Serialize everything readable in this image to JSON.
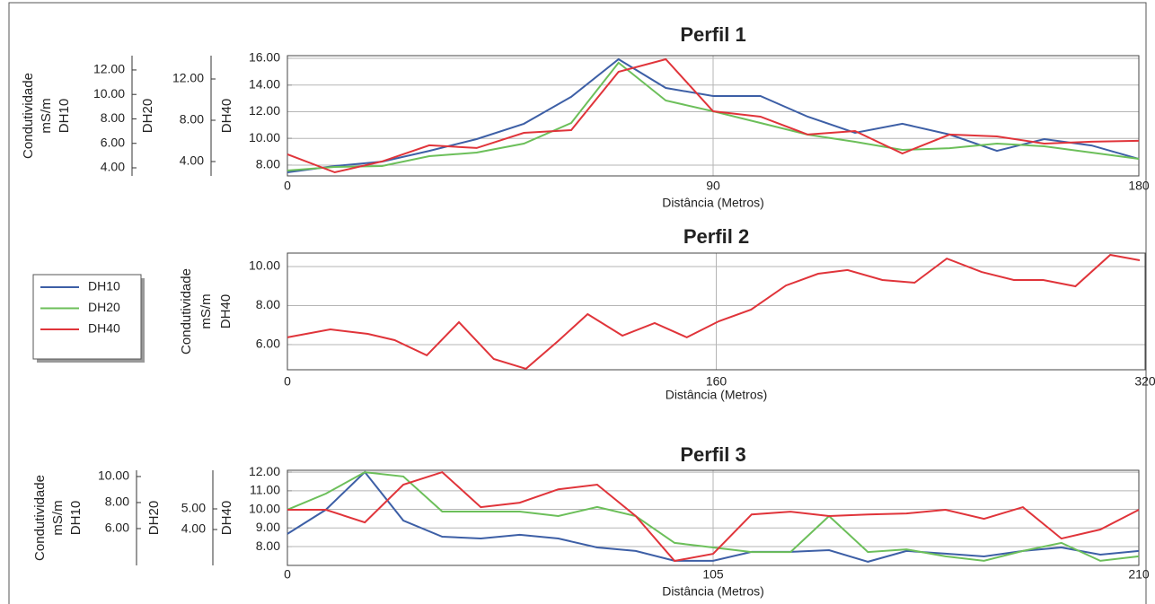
{
  "chart_data": [
    {
      "type": "line",
      "title": "Perfil 1",
      "xlabel": "Distância (Metros)",
      "xlim": [
        0,
        180
      ],
      "xticks": [
        0,
        90,
        180
      ],
      "grid": true,
      "x": [
        0,
        10,
        20,
        30,
        40,
        50,
        60,
        70,
        80,
        90,
        100,
        110,
        120,
        130,
        140,
        150,
        160,
        170,
        180
      ],
      "axes": [
        {
          "label": [
            "Condutividade",
            "mS/m",
            "DH10"
          ],
          "ylim": [
            3.34,
            13.17
          ],
          "yticks": [
            {
              "value": 4,
              "label": "4.00"
            },
            {
              "value": 6,
              "label": "6.00"
            },
            {
              "value": 8,
              "label": "8.00"
            },
            {
              "value": 10,
              "label": "10.00"
            },
            {
              "value": 12,
              "label": "12.00"
            }
          ]
        },
        {
          "label": [
            "DH20"
          ],
          "ylim": [
            2.61,
            14.26
          ],
          "yticks": [
            {
              "value": 4,
              "label": "4.00"
            },
            {
              "value": 8,
              "label": "8.00"
            },
            {
              "value": 12,
              "label": "12.00"
            }
          ]
        },
        {
          "label": [
            "DH40"
          ],
          "ylim": [
            7.19,
            16.2
          ],
          "yticks": [
            {
              "value": 8,
              "label": "8.00"
            },
            {
              "value": 10,
              "label": "10.00"
            },
            {
              "value": 12,
              "label": "12.00"
            },
            {
              "value": 14,
              "label": "14.00"
            },
            {
              "value": 16,
              "label": "16.00"
            }
          ]
        }
      ],
      "series": [
        {
          "name": "DH10",
          "color": "#3d5fa6",
          "axis": 0,
          "values": [
            3.63,
            4.15,
            4.51,
            5.39,
            6.35,
            7.6,
            9.8,
            12.88,
            10.53,
            9.87,
            9.87,
            8.18,
            6.86,
            7.6,
            6.72,
            5.39,
            6.35,
            5.83,
            4.73
          ]
        },
        {
          "name": "DH20",
          "color": "#6cbf5a",
          "axis": 1,
          "values": [
            3.13,
            3.48,
            3.57,
            4.52,
            4.87,
            5.74,
            7.74,
            13.57,
            9.91,
            8.87,
            7.74,
            6.61,
            5.91,
            5.13,
            5.3,
            5.74,
            5.48,
            4.87,
            4.26
          ]
        },
        {
          "name": "DH40",
          "color": "#e0343a",
          "axis": 2,
          "values": [
            8.81,
            7.46,
            8.27,
            9.48,
            9.28,
            10.42,
            10.62,
            14.99,
            15.93,
            12.03,
            11.63,
            10.29,
            10.55,
            8.87,
            10.29,
            10.15,
            9.61,
            9.75,
            9.82
          ]
        }
      ]
    },
    {
      "type": "line",
      "title": "Perfil 2",
      "xlabel": "Distância (Metros)",
      "xlim": [
        0,
        320
      ],
      "xticks": [
        0,
        160,
        320
      ],
      "grid": true,
      "x": [
        0,
        16,
        30,
        40,
        52,
        64,
        77,
        89,
        101,
        112,
        125,
        137,
        149,
        161,
        173,
        186,
        198,
        209,
        222,
        234,
        246,
        259,
        271,
        282,
        294,
        307,
        318
      ],
      "axes": [
        {
          "label": [
            "Condutividade",
            "mS/m",
            "DH40"
          ],
          "ylim": [
            4.71,
            10.69
          ],
          "yticks": [
            {
              "value": 6,
              "label": "6.00"
            },
            {
              "value": 8,
              "label": "8.00"
            },
            {
              "value": 10,
              "label": "10.00"
            }
          ]
        }
      ],
      "series": [
        {
          "color": "#e0343a",
          "axis": 0,
          "values": [
            6.37,
            6.78,
            6.55,
            6.23,
            5.45,
            7.15,
            5.26,
            4.76,
            6.18,
            7.56,
            6.46,
            7.1,
            6.37,
            7.2,
            7.79,
            9.03,
            9.63,
            9.82,
            9.31,
            9.17,
            10.41,
            9.72,
            9.31,
            9.31,
            8.99,
            10.6,
            10.32
          ]
        }
      ]
    },
    {
      "type": "line",
      "title": "Perfil 3",
      "xlabel": "Distância (Metros)",
      "xlim": [
        0,
        210
      ],
      "xticks": [
        0,
        105,
        210
      ],
      "grid": true,
      "x": [
        0,
        9.5,
        19.1,
        28.6,
        38.2,
        47.7,
        57.3,
        66.8,
        76.4,
        85.9,
        95.5,
        105,
        114.5,
        124.1,
        133.6,
        143.2,
        152.7,
        162.3,
        171.8,
        181.4,
        190.9,
        200.5,
        210
      ],
      "axes": [
        {
          "label": [
            "Condutividade",
            "mS/m",
            "DH10"
          ],
          "ylim": [
            3.17,
            10.48
          ],
          "yticks": [
            {
              "value": 6,
              "label": "6.00"
            },
            {
              "value": 8,
              "label": "8.00"
            },
            {
              "value": 10,
              "label": "10.00"
            }
          ]
        },
        {
          "label": [
            "DH20"
          ],
          "ylim": [
            2.26,
            6.87
          ],
          "yticks": [
            {
              "value": 4,
              "label": "4.00"
            },
            {
              "value": 5,
              "label": "5.00"
            }
          ]
        },
        {
          "label": [
            "DH40"
          ],
          "ylim": [
            6.99,
            12.1
          ],
          "yticks": [
            {
              "value": 8,
              "label": "8.00"
            },
            {
              "value": 9,
              "label": "9.00"
            },
            {
              "value": 10,
              "label": "10.00"
            },
            {
              "value": 11,
              "label": "11.00"
            },
            {
              "value": 12,
              "label": "12.00"
            }
          ]
        }
      ],
      "series": [
        {
          "color": "#3d5fa6",
          "axis": 0,
          "values": [
            5.59,
            7.45,
            10.34,
            6.62,
            5.38,
            5.24,
            5.52,
            5.24,
            4.55,
            4.28,
            3.52,
            3.52,
            4.21,
            4.21,
            4.34,
            3.45,
            4.28,
            4.07,
            3.86,
            4.28,
            4.55,
            4.0,
            4.28
          ]
        },
        {
          "color": "#6cbf5a",
          "axis": 1,
          "values": [
            4.96,
            5.74,
            6.78,
            6.57,
            4.87,
            4.87,
            4.87,
            4.65,
            5.09,
            4.65,
            3.35,
            3.13,
            2.91,
            2.91,
            4.65,
            2.91,
            3.04,
            2.7,
            2.48,
            2.96,
            3.35,
            2.48,
            2.7
          ]
        },
        {
          "color": "#e0343a",
          "axis": 2,
          "values": [
            9.98,
            9.98,
            9.3,
            11.33,
            12,
            10.12,
            10.36,
            11.08,
            11.33,
            9.64,
            7.23,
            7.61,
            9.73,
            9.88,
            9.64,
            9.73,
            9.78,
            9.98,
            9.49,
            10.12,
            8.43,
            8.92,
            9.98
          ]
        }
      ]
    }
  ]
}
